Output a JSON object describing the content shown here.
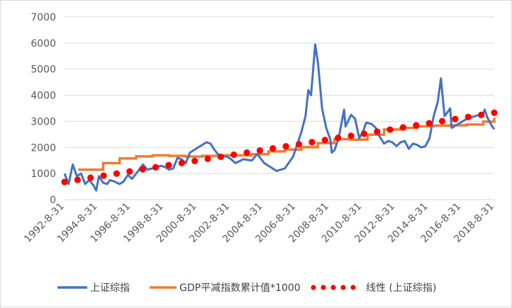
{
  "chart_data": {
    "type": "line",
    "title": "",
    "xlabel": "",
    "ylabel": "",
    "ylim": [
      0,
      7000
    ],
    "yticks": [
      0,
      1000,
      2000,
      3000,
      4000,
      5000,
      6000,
      7000
    ],
    "xlim": [
      "1992-08-31",
      "2018-08-31"
    ],
    "xticks": [
      "1992-8-31",
      "1994-8-31",
      "1996-8-31",
      "1998-8-31",
      "2000-8-31",
      "2002-8-31",
      "2004-8-31",
      "2006-8-31",
      "2008-8-31",
      "2010-8-31",
      "2012-8-31",
      "2014-8-31",
      "2016-8-31",
      "2018-8-31"
    ],
    "grid": "horizontal",
    "legend": "bottom",
    "series": [
      {
        "name": "上证综指",
        "style": "line",
        "color": "#4472c4",
        "x": [
          "1992-08-31",
          "1992-11-30",
          "1993-02-28",
          "1993-05-31",
          "1993-08-31",
          "1993-11-30",
          "1994-02-28",
          "1994-05-31",
          "1994-07-31",
          "1994-09-30",
          "1994-12-31",
          "1995-03-31",
          "1995-05-31",
          "1995-08-31",
          "1995-12-31",
          "1996-03-31",
          "1996-06-30",
          "1996-09-30",
          "1996-12-31",
          "1997-05-31",
          "1997-08-31",
          "1997-12-31",
          "1998-03-31",
          "1998-06-30",
          "1998-09-30",
          "1998-12-31",
          "1999-03-31",
          "1999-06-30",
          "1999-09-30",
          "1999-12-31",
          "2000-03-31",
          "2000-06-30",
          "2000-09-30",
          "2000-12-31",
          "2001-03-31",
          "2001-06-30",
          "2001-09-30",
          "2001-12-31",
          "2002-03-31",
          "2002-06-30",
          "2002-09-30",
          "2002-12-31",
          "2003-06-30",
          "2003-12-31",
          "2004-04-30",
          "2004-09-30",
          "2004-12-31",
          "2005-06-30",
          "2005-12-31",
          "2006-06-30",
          "2006-12-31",
          "2007-03-31",
          "2007-05-31",
          "2007-07-31",
          "2007-10-31",
          "2007-12-31",
          "2008-03-31",
          "2008-06-30",
          "2008-09-30",
          "2008-10-31",
          "2008-12-31",
          "2009-03-31",
          "2009-07-31",
          "2009-08-31",
          "2009-12-31",
          "2010-03-31",
          "2010-06-30",
          "2010-09-30",
          "2010-11-30",
          "2011-03-31",
          "2011-06-30",
          "2011-09-30",
          "2011-12-31",
          "2012-03-31",
          "2012-06-30",
          "2012-09-30",
          "2012-12-31",
          "2013-03-31",
          "2013-06-30",
          "2013-09-30",
          "2013-12-31",
          "2014-03-31",
          "2014-06-30",
          "2014-09-30",
          "2014-12-31",
          "2015-03-31",
          "2015-06-10",
          "2015-07-31",
          "2015-08-31",
          "2015-12-31",
          "2016-01-31",
          "2016-06-30",
          "2016-12-31",
          "2017-06-30",
          "2017-12-31",
          "2018-01-31",
          "2018-03-31",
          "2018-06-30",
          "2018-08-31"
        ],
        "values": [
          1000,
          600,
          1350,
          900,
          1000,
          600,
          750,
          550,
          350,
          900,
          650,
          600,
          750,
          700,
          600,
          700,
          950,
          800,
          1000,
          1350,
          1150,
          1200,
          1250,
          1300,
          1250,
          1150,
          1200,
          1600,
          1550,
          1400,
          1800,
          1900,
          2000,
          2100,
          2200,
          2150,
          1900,
          1700,
          1650,
          1650,
          1550,
          1400,
          1550,
          1500,
          1750,
          1400,
          1300,
          1100,
          1200,
          1650,
          2600,
          3200,
          4200,
          4000,
          5950,
          5250,
          3500,
          2750,
          2300,
          1800,
          1900,
          2350,
          3450,
          2800,
          3250,
          3100,
          2350,
          2650,
          2950,
          2900,
          2750,
          2400,
          2150,
          2250,
          2200,
          2050,
          2200,
          2250,
          1950,
          2150,
          2100,
          2000,
          2050,
          2350,
          3200,
          3750,
          4650,
          3700,
          3200,
          3500,
          2750,
          2900,
          3100,
          3200,
          3300,
          3450,
          3150,
          2850,
          2700
        ]
      },
      {
        "name": "GDP平减指数累计值*1000",
        "style": "step",
        "color": "#ed7d31",
        "x": [
          "1993-06-30",
          "1994-12-31",
          "1995-12-31",
          "1996-12-31",
          "1997-12-31",
          "1998-12-31",
          "1999-12-31",
          "2000-12-31",
          "2001-12-31",
          "2002-12-31",
          "2003-12-31",
          "2004-12-31",
          "2005-12-31",
          "2006-12-31",
          "2007-12-31",
          "2008-12-31",
          "2009-12-31",
          "2010-12-31",
          "2011-12-31",
          "2012-12-31",
          "2013-12-31",
          "2014-12-31",
          "2015-12-31",
          "2016-12-31",
          "2017-12-31",
          "2018-08-31"
        ],
        "values": [
          1150,
          1400,
          1580,
          1660,
          1700,
          1680,
          1650,
          1680,
          1700,
          1700,
          1740,
          1850,
          1920,
          2010,
          2170,
          2320,
          2300,
          2490,
          2690,
          2750,
          2810,
          2840,
          2850,
          2880,
          2990,
          3140
        ]
      },
      {
        "name": "线性 (上证综指)",
        "style": "dotted-trend",
        "color": "#ff0000",
        "x": [
          "1992-08-31",
          "2018-08-31"
        ],
        "values": [
          680,
          3330
        ]
      }
    ]
  }
}
